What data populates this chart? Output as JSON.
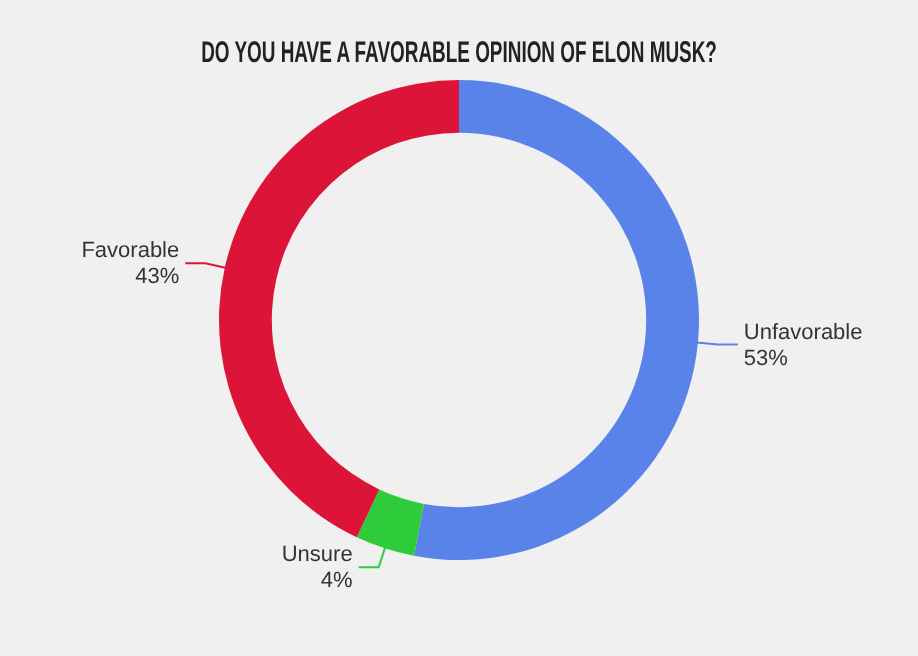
{
  "chart_data": {
    "type": "donut",
    "title": "DO YOU HAVE A FAVORABLE OPINION OF ELON MUSK?",
    "categories": [
      "Unfavorable",
      "Unsure",
      "Favorable"
    ],
    "values": [
      53,
      4,
      43
    ],
    "colors": [
      "#5a83ea",
      "#2ecc3a",
      "#dc1437"
    ],
    "value_labels": [
      "53%",
      "4%",
      "43%"
    ],
    "legend": false
  }
}
